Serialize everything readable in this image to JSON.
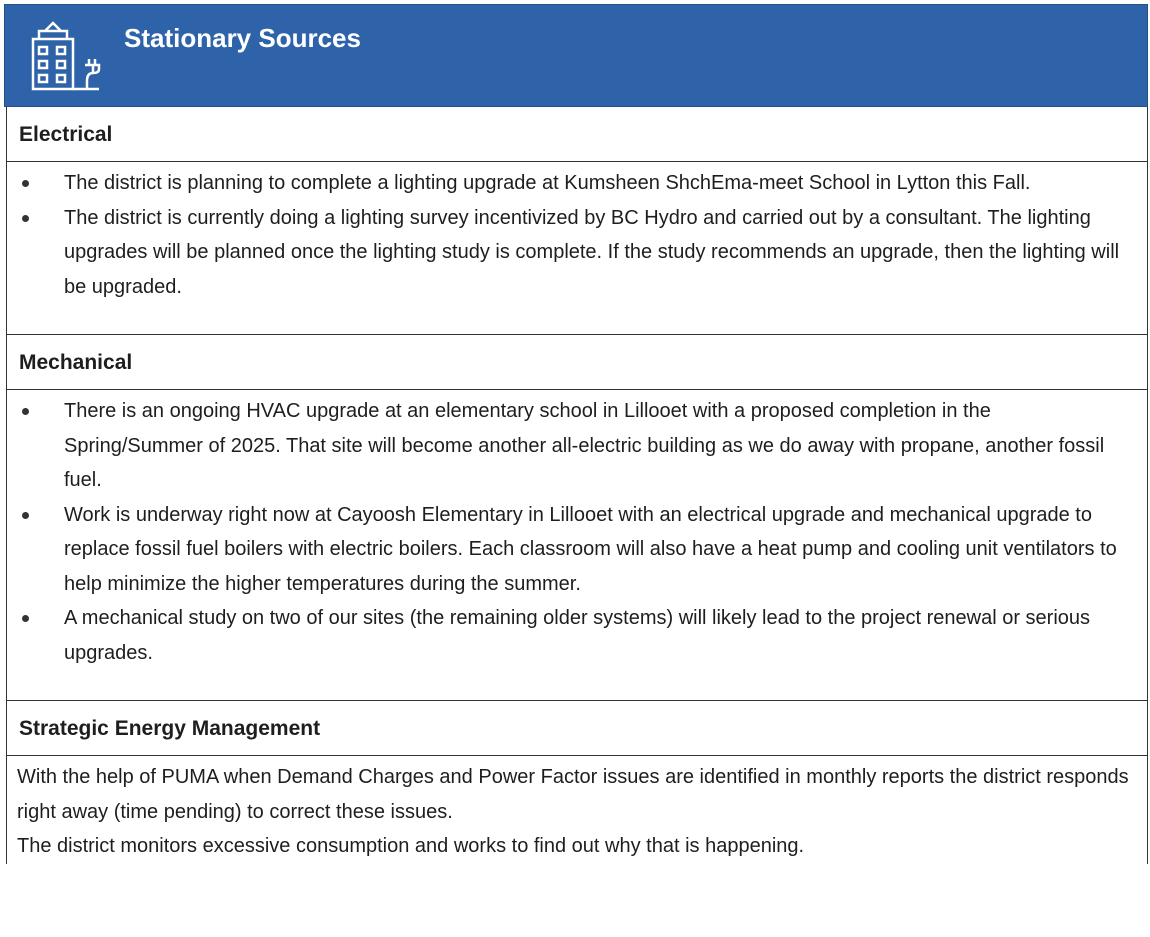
{
  "header": {
    "title": "Stationary Sources"
  },
  "sections": [
    {
      "heading": "Electrical",
      "items": [
        "The district is planning to complete a lighting upgrade at Kumsheen ShchEma-meet School in Lytton this Fall.",
        "The district is currently doing a lighting survey incentivized by BC Hydro and carried out by a consultant. The lighting upgrades will be planned once the lighting study is complete. If the study recommends an upgrade, then the lighting will be upgraded."
      ]
    },
    {
      "heading": "Mechanical",
      "items": [
        "There is an ongoing HVAC upgrade at an elementary school in Lillooet with a proposed completion in the Spring/Summer of 2025. That site will become another all-electric building as we do away with propane, another fossil fuel.",
        "Work is underway right now at  Cayoosh Elementary in Lillooet with an electrical upgrade and mechanical upgrade to replace fossil fuel boilers with electric boilers. Each classroom will also have a heat pump and cooling unit ventilators to help minimize the higher temperatures during the summer.",
        "A mechanical study on two of our sites (the remaining older systems) will likely lead to the project renewal or serious upgrades."
      ]
    },
    {
      "heading": "Strategic Energy Management",
      "paragraphs": [
        "With the help of PUMA when Demand Charges and Power Factor issues are identified in monthly reports the district responds right away (time pending) to correct these issues.",
        "The district monitors excessive consumption and works to find out why that is happening."
      ]
    }
  ]
}
